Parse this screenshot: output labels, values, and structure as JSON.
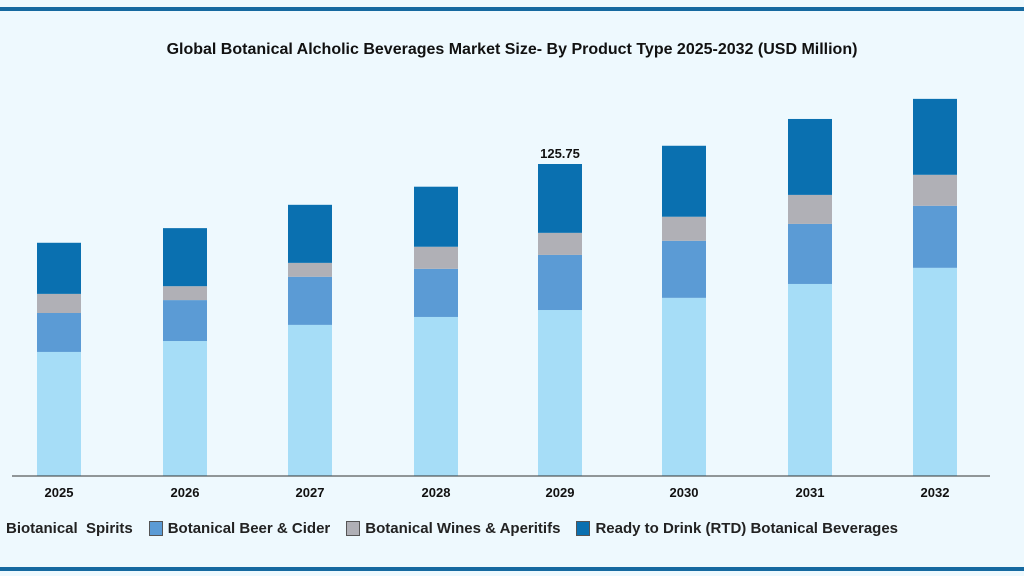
{
  "chart_data": {
    "type": "bar",
    "stacked": true,
    "title": "Global Botanical Alcholic Beverages Market Size- By Product Type 2025-2032 (USD Million)",
    "xlabel": "",
    "ylabel": "",
    "categories": [
      "2025",
      "2026",
      "2027",
      "2028",
      "2029",
      "2030",
      "2031",
      "2032"
    ],
    "series": [
      {
        "name": "Biotanical  Spirits",
        "color": "#a6ddf7",
        "values": [
          50.0,
          54.4,
          60.9,
          64.1,
          66.9,
          71.8,
          77.4,
          83.9
        ]
      },
      {
        "name": "Botanical Beer & Cider",
        "color": "#5b9bd5",
        "values": [
          15.7,
          16.5,
          19.4,
          19.4,
          22.2,
          23.0,
          24.2,
          25.0
        ]
      },
      {
        "name": "Botanical Wines & Aperitifs",
        "color": "#b0b0b6",
        "values": [
          7.7,
          5.6,
          5.6,
          8.9,
          8.9,
          9.7,
          11.7,
          12.5
        ]
      },
      {
        "name": "Ready to Drink (RTD) Botanical Beverages",
        "color": "#0a70b0",
        "values": [
          20.6,
          23.4,
          23.4,
          24.2,
          27.75,
          28.6,
          30.6,
          30.6
        ]
      }
    ],
    "annotations": [
      {
        "category": "2029",
        "text": "125.75"
      }
    ],
    "ylim": [
      0,
      160
    ],
    "grid": false,
    "legend": "bottom"
  }
}
